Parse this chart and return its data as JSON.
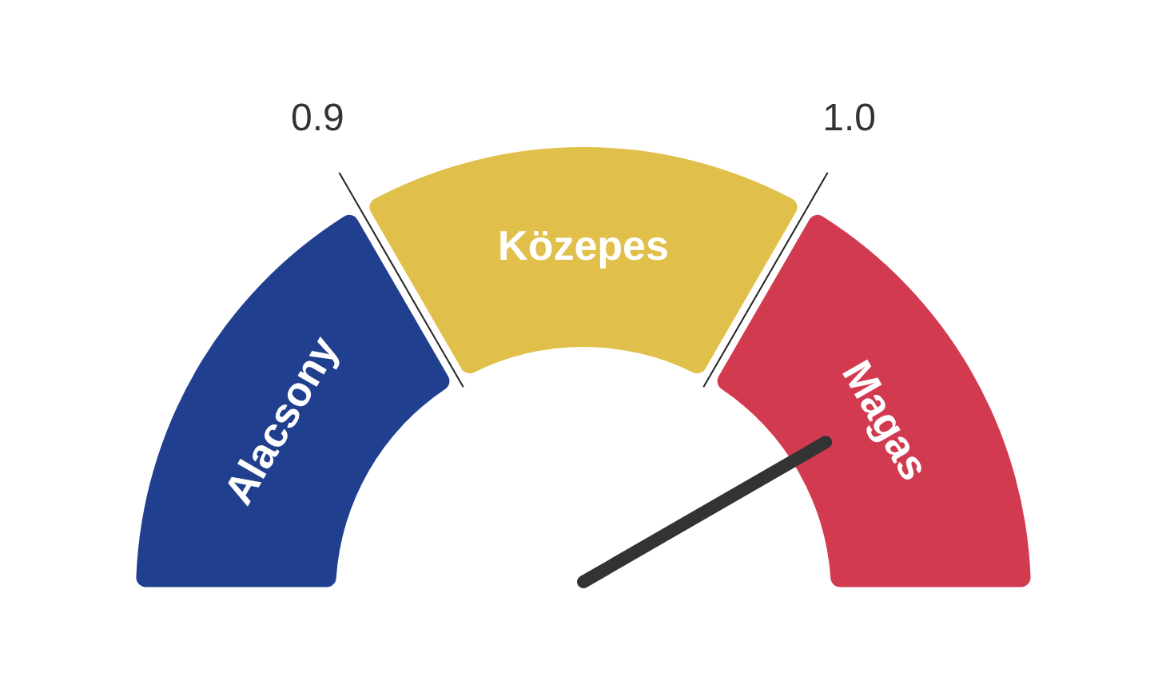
{
  "chart_data": {
    "type": "donut",
    "categories": [
      "Alacsony",
      "Közepes",
      "Magas"
    ],
    "values": [
      33.3,
      33.4,
      33.3
    ],
    "colors": [
      "#213f8f",
      "#e0c04a",
      "#d23a50"
    ],
    "needle": "Magas",
    "annotations": [
      "0.9",
      "1.0"
    ]
  }
}
